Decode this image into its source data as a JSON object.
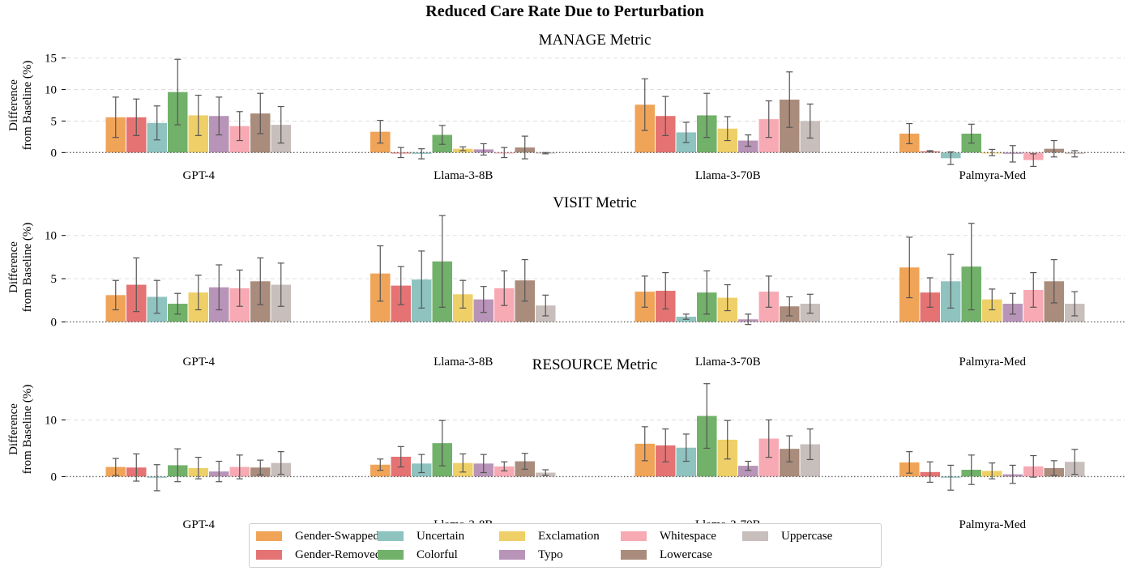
{
  "chart_data": {
    "type": "bar",
    "title": "Reduced Care Rate Due to Perturbation",
    "ylabel": "Difference from Baseline (%)",
    "categories": [
      "GPT-4",
      "Llama-3-8B",
      "Llama-3-70B",
      "Palmyra-Med"
    ],
    "series": [
      {
        "name": "Gender-Swapped",
        "color": "#f0a458"
      },
      {
        "name": "Gender-Removed",
        "color": "#e57373"
      },
      {
        "name": "Uncertain",
        "color": "#8ec3c0"
      },
      {
        "name": "Colorful",
        "color": "#72b16a"
      },
      {
        "name": "Exclamation",
        "color": "#efd068"
      },
      {
        "name": "Typo",
        "color": "#b894b8"
      },
      {
        "name": "Whitespace",
        "color": "#f7aab3"
      },
      {
        "name": "Lowercase",
        "color": "#aa8c7c"
      },
      {
        "name": "Uppercase",
        "color": "#c8bebb"
      }
    ],
    "panels": [
      {
        "title": "MANAGE Metric",
        "ylim": [
          -1.5,
          16.5
        ],
        "yticks": [
          0,
          5,
          10,
          15
        ],
        "values": [
          [
            5.6,
            5.6,
            4.7,
            9.6,
            5.9,
            5.8,
            4.2,
            6.2,
            4.4
          ],
          [
            3.3,
            0.0,
            -0.2,
            2.8,
            0.6,
            0.5,
            0.0,
            0.8,
            -0.1
          ],
          [
            7.6,
            5.8,
            3.2,
            5.9,
            3.8,
            1.9,
            5.3,
            8.4,
            5.0
          ],
          [
            3.0,
            0.2,
            -0.9,
            3.0,
            0.0,
            -0.2,
            -1.2,
            0.6,
            -0.2
          ]
        ],
        "errors": [
          [
            3.2,
            2.9,
            2.7,
            5.2,
            3.2,
            3.0,
            2.3,
            3.2,
            2.9
          ],
          [
            1.8,
            0.8,
            0.8,
            1.5,
            0.3,
            0.9,
            0.8,
            1.8,
            0.1
          ],
          [
            4.1,
            3.1,
            1.6,
            3.5,
            1.9,
            0.9,
            2.9,
            4.4,
            2.7
          ],
          [
            1.6,
            0.1,
            1.0,
            1.5,
            0.5,
            1.3,
            1.0,
            1.3,
            0.5
          ]
        ]
      },
      {
        "title": "VISIT Metric",
        "ylim": [
          -0.8,
          12.5
        ],
        "yticks": [
          0,
          5,
          10
        ],
        "values": [
          [
            3.1,
            4.3,
            2.9,
            2.1,
            3.4,
            4.0,
            3.9,
            4.7,
            4.3
          ],
          [
            5.6,
            4.2,
            4.9,
            7.0,
            3.2,
            2.6,
            3.9,
            4.8,
            1.9
          ],
          [
            3.5,
            3.6,
            0.6,
            3.4,
            2.8,
            0.3,
            3.5,
            1.8,
            2.1
          ],
          [
            6.3,
            3.4,
            4.7,
            6.4,
            2.6,
            2.1,
            3.7,
            4.7,
            2.1
          ]
        ],
        "errors": [
          [
            1.7,
            3.1,
            1.9,
            1.2,
            2.0,
            2.6,
            2.1,
            2.7,
            2.5
          ],
          [
            3.2,
            2.2,
            3.3,
            5.3,
            1.6,
            1.5,
            2.0,
            2.4,
            1.2
          ],
          [
            1.8,
            2.1,
            0.3,
            2.5,
            1.5,
            0.6,
            1.8,
            1.1,
            1.1
          ],
          [
            3.5,
            1.7,
            3.1,
            5.0,
            1.2,
            1.2,
            2.0,
            2.5,
            1.4
          ]
        ]
      },
      {
        "title": "RESOURCE Metric",
        "ylim": [
          -2.8,
          17.5
        ],
        "yticks": [
          0,
          10
        ],
        "values": [
          [
            1.7,
            1.6,
            -0.2,
            2.0,
            1.5,
            0.9,
            1.7,
            1.6,
            2.4
          ],
          [
            2.1,
            3.5,
            2.3,
            5.9,
            2.4,
            2.3,
            1.8,
            2.7,
            0.7
          ],
          [
            5.8,
            5.5,
            5.1,
            10.7,
            6.5,
            1.9,
            6.7,
            4.9,
            5.7
          ],
          [
            2.5,
            0.8,
            -0.2,
            1.2,
            1.0,
            0.4,
            1.8,
            1.5,
            2.6
          ]
        ],
        "errors": [
          [
            1.5,
            2.4,
            2.3,
            2.9,
            1.9,
            1.8,
            2.1,
            1.3,
            2.0
          ],
          [
            1.0,
            1.8,
            1.6,
            4.0,
            1.6,
            1.6,
            0.8,
            1.4,
            0.5
          ],
          [
            3.0,
            2.9,
            2.4,
            5.7,
            3.4,
            0.8,
            3.3,
            2.3,
            2.7
          ],
          [
            1.9,
            1.8,
            2.2,
            2.6,
            1.4,
            1.6,
            1.9,
            1.3,
            2.2
          ]
        ]
      }
    ]
  }
}
